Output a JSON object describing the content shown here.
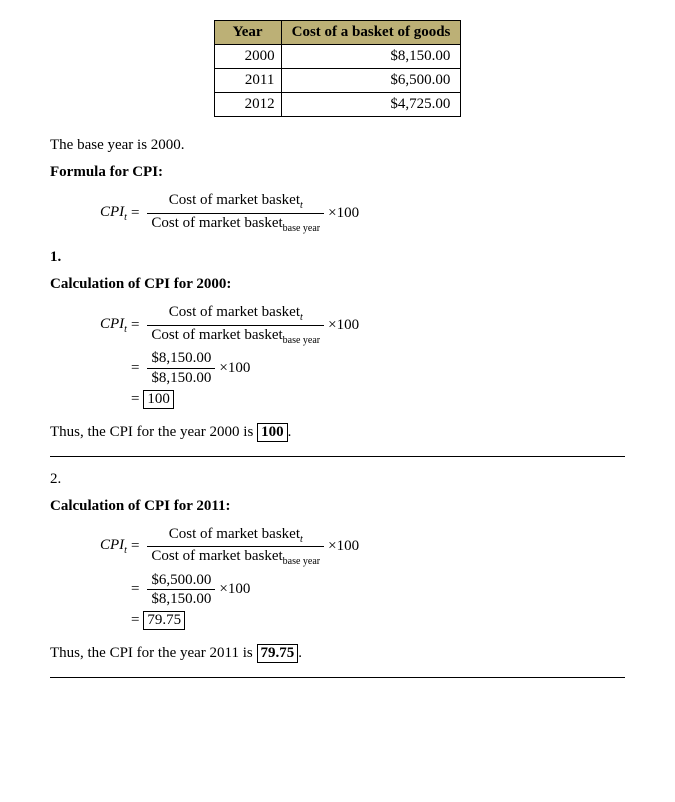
{
  "table": {
    "header_year": "Year",
    "header_cost": "Cost of a basket of goods",
    "rows": [
      {
        "year": "2000",
        "cost": "$8,150.00"
      },
      {
        "year": "2011",
        "cost": "$6,500.00"
      },
      {
        "year": "2012",
        "cost": "$4,725.00"
      }
    ],
    "header_bg": "#bcb076"
  },
  "base_year_text": "The base year is 2000.",
  "formula_heading": "Formula for CPI:",
  "formula": {
    "lhs_var": "CPI",
    "lhs_sub": "t",
    "equals": "=",
    "num_text": "Cost of market basket",
    "num_sub": "t",
    "den_text": "Cost of market basket",
    "den_sub": "base year",
    "times100": "×100"
  },
  "section1": {
    "number": "1.",
    "heading": "Calculation of CPI for 2000:",
    "step2_num": "$8,150.00",
    "step2_den": "$8,150.00",
    "result": "100",
    "conclusion_pre": "Thus, the CPI for the year 2000 is ",
    "conclusion_box": "100",
    "conclusion_post": "."
  },
  "section2": {
    "number": "2.",
    "heading": "Calculation of CPI for 2011:",
    "step2_num": "$6,500.00",
    "step2_den": "$8,150.00",
    "result": "79.75",
    "conclusion_pre": "Thus, the CPI for the year 2011 is ",
    "conclusion_box": "79.75",
    "conclusion_post": "."
  }
}
